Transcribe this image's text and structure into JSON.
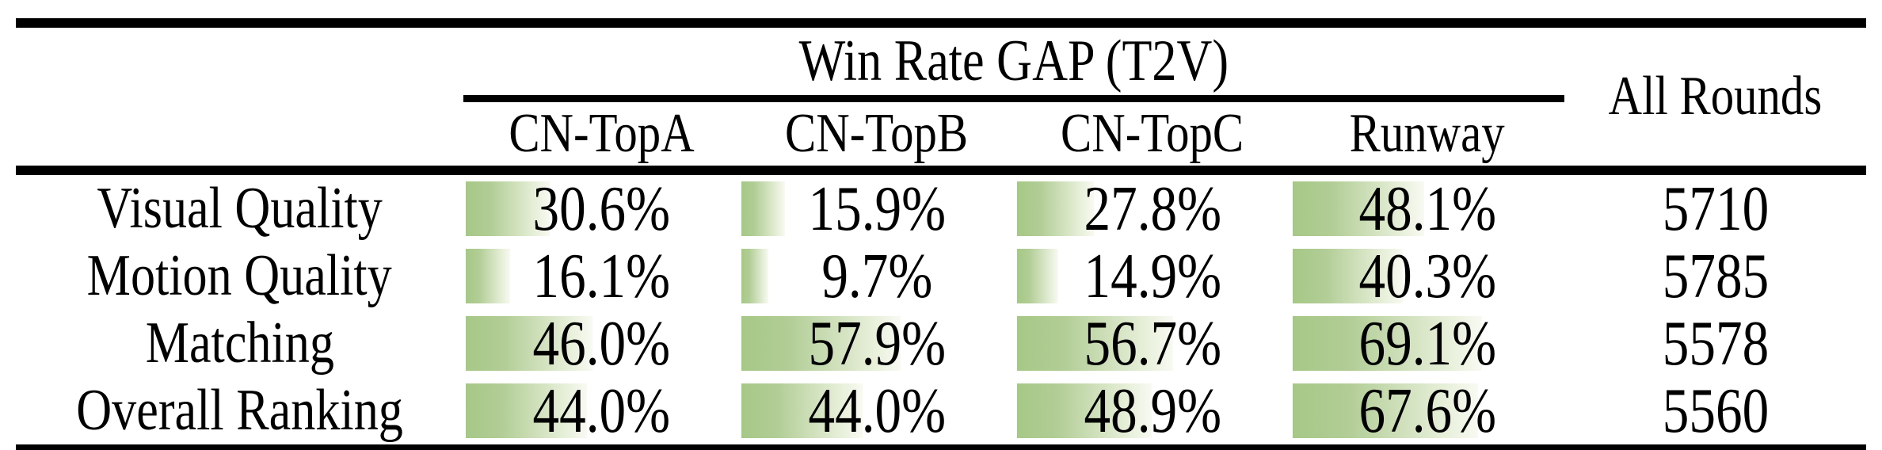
{
  "table": {
    "span_header": "Win Rate GAP (T2V)",
    "all_rounds_header": "All Rounds",
    "columns": [
      "CN-TopA",
      "CN-TopB",
      "CN-TopC",
      "Runway"
    ],
    "rows": [
      {
        "label": "Visual Quality",
        "cells": [
          {
            "text": "30.6%",
            "pct": 30.6
          },
          {
            "text": "15.9%",
            "pct": 15.9
          },
          {
            "text": "27.8%",
            "pct": 27.8
          },
          {
            "text": "48.1%",
            "pct": 48.1
          }
        ],
        "all_rounds": "5710"
      },
      {
        "label": "Motion Quality",
        "cells": [
          {
            "text": "16.1%",
            "pct": 16.1
          },
          {
            "text": "9.7%",
            "pct": 9.7
          },
          {
            "text": "14.9%",
            "pct": 14.9
          },
          {
            "text": "40.3%",
            "pct": 40.3
          }
        ],
        "all_rounds": "5785"
      },
      {
        "label": "Matching",
        "cells": [
          {
            "text": "46.0%",
            "pct": 46.0
          },
          {
            "text": "57.9%",
            "pct": 57.9
          },
          {
            "text": "56.7%",
            "pct": 56.7
          },
          {
            "text": "69.1%",
            "pct": 69.1
          }
        ],
        "all_rounds": "5578"
      },
      {
        "label": "Overall Ranking",
        "cells": [
          {
            "text": "44.0%",
            "pct": 44.0
          },
          {
            "text": "44.0%",
            "pct": 44.0
          },
          {
            "text": "48.9%",
            "pct": 48.9
          },
          {
            "text": "67.6%",
            "pct": 67.6
          }
        ],
        "all_rounds": "5560"
      }
    ],
    "colors": {
      "bar_green": "#a6c887",
      "bar_fade": "#f8faf3",
      "rule": "#000000",
      "background": "#ffffff"
    }
  },
  "chart_data": {
    "type": "table",
    "title": "Win Rate GAP (T2V)",
    "columns": [
      "CN-TopA",
      "CN-TopB",
      "CN-TopC",
      "Runway",
      "All Rounds"
    ],
    "row_labels": [
      "Visual Quality",
      "Motion Quality",
      "Matching",
      "Overall Ranking"
    ],
    "rows": [
      [
        30.6,
        15.9,
        27.8,
        48.1,
        5710
      ],
      [
        16.1,
        9.7,
        14.9,
        40.3,
        5785
      ],
      [
        46.0,
        57.9,
        56.7,
        69.1,
        5578
      ],
      [
        44.0,
        44.0,
        48.9,
        67.6,
        5560
      ]
    ],
    "notes": "Win-rate gap percentages with in-cell green gradient data bars proportional to value; All Rounds column gives round counts"
  }
}
